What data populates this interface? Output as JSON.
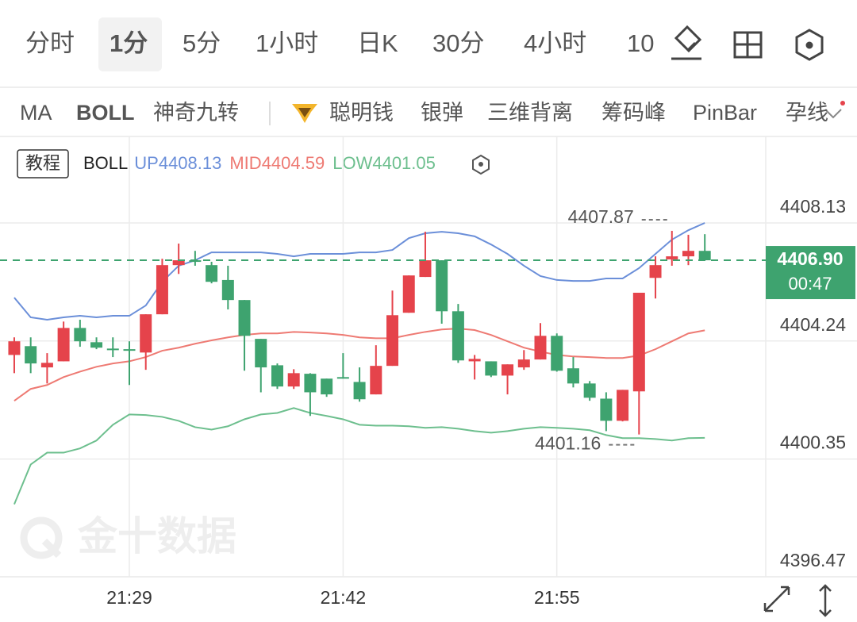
{
  "tabs": {
    "items": [
      "分时",
      "1分",
      "5分",
      "1小时",
      "日K",
      "30分",
      "4小时",
      "10"
    ],
    "active_index": 1
  },
  "indicators": {
    "items": [
      "MA",
      "BOLL",
      "神奇九转",
      "聪明钱",
      "银弹",
      "三维背离",
      "筹码峰",
      "PinBar",
      "孕线"
    ],
    "active_index": 1
  },
  "tutorial_button": "教程",
  "watermark": "金十数据",
  "chart_data": {
    "type": "candlestick",
    "categories": [
      null,
      null,
      null,
      null,
      null,
      null,
      null,
      "21:29",
      null,
      null,
      null,
      null,
      null,
      null,
      null,
      null,
      null,
      null,
      null,
      null,
      "21:42",
      null,
      null,
      null,
      null,
      null,
      null,
      null,
      null,
      null,
      null,
      null,
      null,
      "21:55",
      null,
      null,
      null,
      null,
      null,
      null,
      null,
      null,
      null
    ],
    "ohlc": {
      "open": [
        4403.78,
        4404.07,
        4403.37,
        4403.57,
        4404.67,
        4404.2,
        4403.99,
        4403.97,
        4403.86,
        4405.12,
        4406.74,
        4406.9,
        4406.74,
        4406.25,
        4405.59,
        4404.31,
        4403.44,
        4402.74,
        4403.16,
        4403.0,
        4403.05,
        4402.89,
        4402.48,
        4403.42,
        4405.17,
        4406.35,
        4406.9,
        4405.22,
        4403.57,
        4403.57,
        4403.1,
        4403.37,
        4403.63,
        4404.41,
        4403.34,
        4402.84,
        4402.34,
        4401.61,
        4402.58,
        4406.32,
        4406.93,
        4407.03,
        4407.21
      ],
      "high": [
        4404.36,
        4404.36,
        4403.84,
        4404.88,
        4404.94,
        4404.36,
        4404.36,
        4404.23,
        4405.12,
        4406.95,
        4407.45,
        4407.21,
        4406.85,
        4406.72,
        4405.59,
        4404.31,
        4403.5,
        4403.31,
        4403.18,
        4403.0,
        4403.84,
        4403.37,
        4404.1,
        4405.9,
        4406.4,
        4407.84,
        4406.9,
        4405.46,
        4403.78,
        4403.57,
        4403.47,
        4403.94,
        4404.83,
        4404.49,
        4403.71,
        4402.92,
        4402.55,
        4402.63,
        4405.83,
        4407.03,
        4407.87,
        4407.74,
        4407.76
      ],
      "low": [
        4403.18,
        4403.18,
        4402.84,
        4403.57,
        4404.05,
        4403.97,
        4403.71,
        4402.79,
        4403.29,
        4405.12,
        4406.45,
        4406.72,
        4406.14,
        4405.28,
        4403.26,
        4402.55,
        4402.66,
        4402.66,
        4401.77,
        4402.4,
        4403.0,
        4402.24,
        4402.48,
        4403.42,
        4405.17,
        4406.35,
        4404.81,
        4403.52,
        4402.97,
        4403.05,
        4402.48,
        4403.29,
        4403.63,
        4403.23,
        4402.71,
        4402.27,
        4401.27,
        4401.59,
        4401.16,
        4405.64,
        4406.72,
        4406.74,
        4406.9
      ],
      "close": [
        4404.23,
        4403.5,
        4403.52,
        4404.67,
        4404.23,
        4404.02,
        4403.94,
        4403.92,
        4405.12,
        4406.74,
        4406.9,
        4406.85,
        4406.19,
        4405.59,
        4404.41,
        4403.37,
        4402.74,
        4403.18,
        4402.55,
        4402.48,
        4403.0,
        4402.32,
        4403.42,
        4405.09,
        4406.4,
        4406.9,
        4405.22,
        4403.6,
        4403.65,
        4403.1,
        4403.47,
        4403.63,
        4404.41,
        4403.26,
        4402.84,
        4402.37,
        4401.61,
        4402.63,
        4405.83,
        4406.74,
        4407.03,
        4407.21,
        4406.9
      ]
    },
    "up_color": "#e5434b",
    "down_color": "#3ea36f",
    "indicator_name_ref": "indicators.items.1",
    "series": [
      {
        "name": "UP",
        "color": "#6b8fd9",
        "values": [
          4405.67,
          4405.02,
          4404.94,
          4405.02,
          4405.07,
          4405.02,
          4405.07,
          4405.07,
          4405.41,
          4406.19,
          4406.72,
          4406.9,
          4407.16,
          4407.16,
          4407.16,
          4407.16,
          4407.11,
          4407.03,
          4407.11,
          4407.11,
          4407.11,
          4407.16,
          4407.16,
          4407.24,
          4407.63,
          4407.79,
          4407.84,
          4407.79,
          4407.69,
          4407.42,
          4407.11,
          4406.72,
          4406.38,
          4406.25,
          4406.22,
          4406.22,
          4406.3,
          4406.3,
          4406.64,
          4407.11,
          4407.58,
          4407.89,
          4408.13
        ]
      },
      {
        "name": "MID",
        "color": "#ee7a73",
        "values": [
          4402.27,
          4402.66,
          4402.79,
          4403.05,
          4403.23,
          4403.39,
          4403.5,
          4403.57,
          4403.71,
          4403.92,
          4404.02,
          4404.15,
          4404.26,
          4404.36,
          4404.44,
          4404.49,
          4404.49,
          4404.54,
          4404.52,
          4404.49,
          4404.44,
          4404.36,
          4404.33,
          4404.33,
          4404.44,
          4404.54,
          4404.62,
          4404.65,
          4404.6,
          4404.44,
          4404.23,
          4404.02,
          4403.89,
          4403.78,
          4403.73,
          4403.71,
          4403.68,
          4403.68,
          4403.76,
          4403.97,
          4404.23,
          4404.49,
          4404.59
        ]
      },
      {
        "name": "LOW",
        "color": "#6dbf8e",
        "values": [
          4398.86,
          4400.17,
          4400.56,
          4400.56,
          4400.7,
          4400.96,
          4401.48,
          4401.82,
          4401.8,
          4401.74,
          4401.61,
          4401.4,
          4401.32,
          4401.43,
          4401.66,
          4401.82,
          4401.87,
          4402.03,
          4401.87,
          4401.77,
          4401.66,
          4401.48,
          4401.45,
          4401.45,
          4401.43,
          4401.38,
          4401.4,
          4401.35,
          4401.27,
          4401.22,
          4401.27,
          4401.35,
          4401.4,
          4401.38,
          4401.35,
          4401.3,
          4401.14,
          4401.04,
          4401.04,
          4401.01,
          4400.96,
          4401.04,
          4401.05
        ]
      }
    ],
    "last_price": {
      "value": 4406.9,
      "label": "4406.90"
    },
    "last_price_color": "#3ea36f",
    "countdown": "00:47",
    "max_index": 40,
    "min_index": 38,
    "ylim": [
      4396.47,
      4410.98
    ],
    "yticks": [
      4408.13,
      4404.24,
      4400.35,
      4396.47
    ],
    "grid": true
  }
}
